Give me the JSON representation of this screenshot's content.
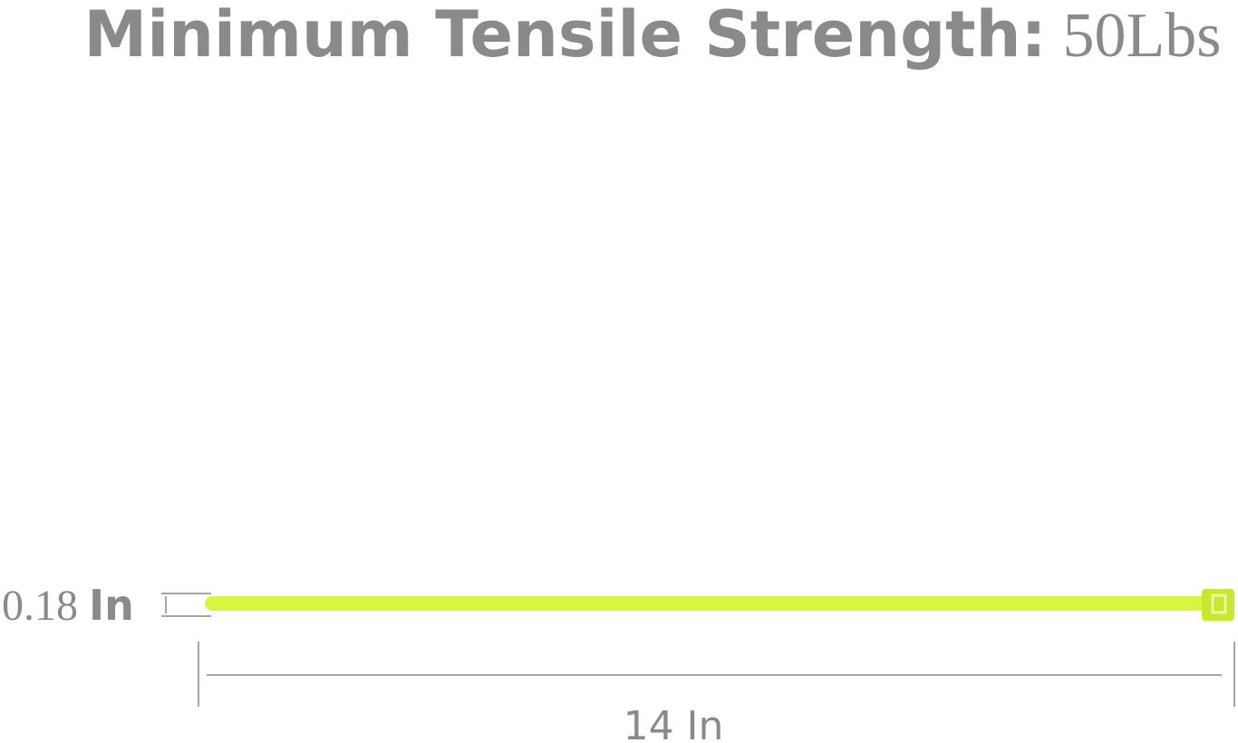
{
  "title": {
    "label": "Minimum Tensile Strength:",
    "value": "50Lbs"
  },
  "width_dimension": {
    "number": "0.18",
    "unit": "In"
  },
  "length_dimension": "14 In"
}
